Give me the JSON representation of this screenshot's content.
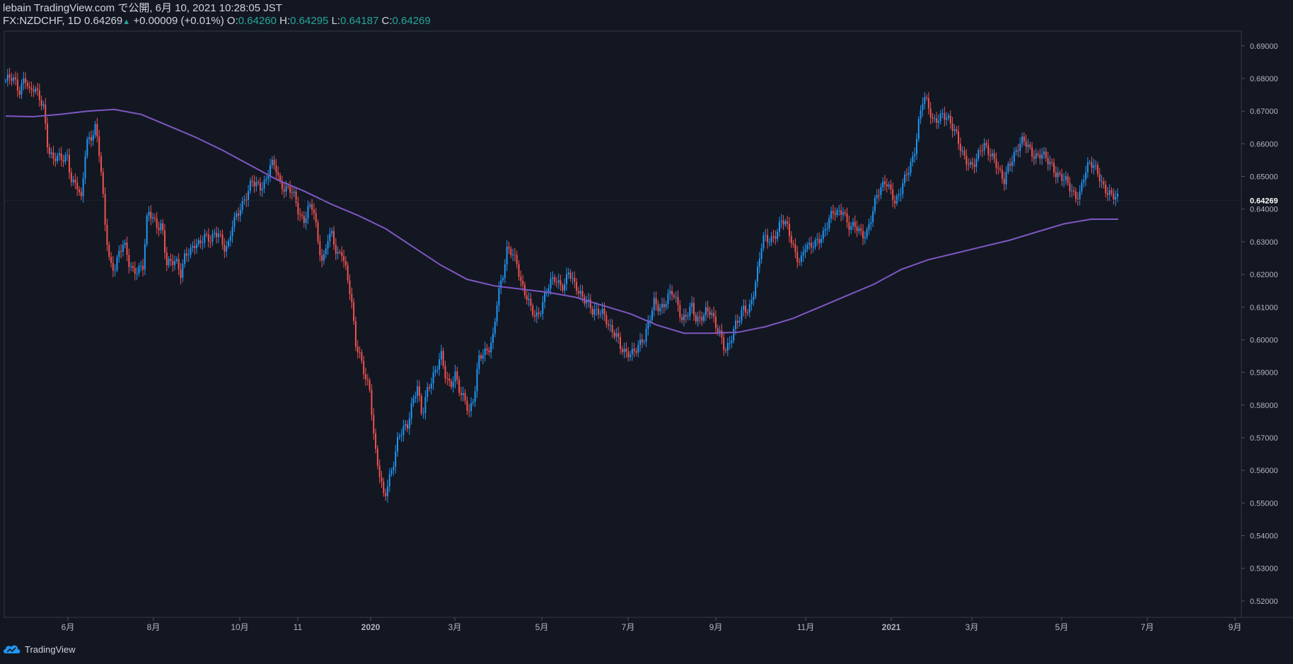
{
  "header": {
    "publish_line": "lebain TradingView.com で公開, 6月 10, 2021 10:28:05 JST",
    "symbol_line": "FX:NZDCHF, 1D",
    "last": "0.64269",
    "change_arrow": "▲",
    "change": "+0.00009 (+0.01%)",
    "o_label": "O:",
    "o": "0.64260",
    "h_label": "H:",
    "h": "0.64295",
    "l_label": "L:",
    "l": "0.64187",
    "c_label": "C:",
    "c": "0.64269"
  },
  "footer": {
    "brand": "TradingView"
  },
  "colors": {
    "background": "#131722",
    "up": "#2196f3",
    "down": "#ef5350",
    "ma": "#7e57c2",
    "axis_text": "#b2b5be",
    "border": "#363a45",
    "positive_text": "#26a69a"
  },
  "chart_data": {
    "type": "candlestick",
    "symbol": "FX:NZDCHF",
    "interval": "1D",
    "y_range": [
      0.515,
      0.6945
    ],
    "y_ticks": [
      "0.69000",
      "0.68000",
      "0.67000",
      "0.66000",
      "0.65000",
      "0.64000",
      "0.63000",
      "0.62000",
      "0.61000",
      "0.60000",
      "0.59000",
      "0.58000",
      "0.57000",
      "0.56000",
      "0.55000",
      "0.54000",
      "0.53000",
      "0.52000"
    ],
    "x_ticks": [
      "6月",
      "8月",
      "10月",
      "11",
      "2020",
      "3月",
      "5月",
      "7月",
      "9月",
      "11月",
      "2021",
      "3月",
      "5月",
      "7月",
      "9月"
    ],
    "last_price_label": "0.64269",
    "price_path": [
      [
        0.6785,
        0.68
      ],
      [
        0.6795,
        0.6765
      ],
      [
        0.681,
        0.675
      ],
      [
        0.6765,
        0.675
      ],
      [
        0.672,
        0.658
      ],
      [
        0.6545,
        0.6555
      ],
      [
        0.6558,
        0.657
      ],
      [
        0.648,
        0.647
      ],
      [
        0.642,
        0.661
      ],
      [
        0.6625,
        0.6655
      ],
      [
        0.654,
        0.635
      ],
      [
        0.6235,
        0.6225
      ],
      [
        0.627,
        0.629
      ],
      [
        0.623,
        0.621
      ],
      [
        0.6225,
        0.6225
      ],
      [
        0.6385,
        0.637
      ],
      [
        0.635,
        0.636
      ],
      [
        0.6235,
        0.623
      ],
      [
        0.6235,
        0.6205
      ],
      [
        0.6275,
        0.627
      ],
      [
        0.6285,
        0.6285
      ],
      [
        0.6325,
        0.6315
      ],
      [
        0.632,
        0.632
      ],
      [
        0.6275,
        0.629
      ],
      [
        0.637,
        0.6385
      ],
      [
        0.6405,
        0.6435
      ],
      [
        0.6495,
        0.6485
      ],
      [
        0.6465,
        0.6475
      ],
      [
        0.6535,
        0.654
      ],
      [
        0.6485,
        0.646
      ],
      [
        0.6455,
        0.6435
      ],
      [
        0.639,
        0.637
      ],
      [
        0.6405,
        0.64
      ],
      [
        0.6295,
        0.6235
      ],
      [
        0.632,
        0.6325
      ],
      [
        0.6245,
        0.6265
      ],
      [
        0.6215,
        0.614
      ],
      [
        0.5985,
        0.5935
      ],
      [
        0.588,
        0.585
      ],
      [
        0.568,
        0.559
      ],
      [
        0.5505,
        0.5565
      ],
      [
        0.563,
        0.5715
      ],
      [
        0.5725,
        0.573
      ],
      [
        0.5805,
        0.5865
      ],
      [
        0.5775,
        0.584
      ],
      [
        0.5865,
        0.5905
      ],
      [
        0.5965,
        0.5895
      ],
      [
        0.5855,
        0.5885
      ],
      [
        0.5835,
        0.5825
      ],
      [
        0.5785,
        0.5825
      ],
      [
        0.5935,
        0.5955
      ],
      [
        0.5975,
        0.6015
      ],
      [
        0.6135,
        0.618
      ],
      [
        0.6275,
        0.6275
      ],
      [
        0.6245,
        0.6165
      ],
      [
        0.6125,
        0.6095
      ],
      [
        0.6075,
        0.6095
      ],
      [
        0.6135,
        0.6165
      ],
      [
        0.6185,
        0.6175
      ],
      [
        0.617,
        0.621
      ],
      [
        0.6165,
        0.6145
      ],
      [
        0.6135,
        0.6125
      ],
      [
        0.6085,
        0.6075
      ],
      [
        0.6085,
        0.6065
      ],
      [
        0.6035,
        0.6015
      ],
      [
        0.5965,
        0.5955
      ],
      [
        0.5965,
        0.5975
      ],
      [
        0.5985,
        0.5995
      ],
      [
        0.6055,
        0.6125
      ],
      [
        0.6105,
        0.6095
      ],
      [
        0.6125,
        0.6145
      ],
      [
        0.6115,
        0.6065
      ],
      [
        0.6075,
        0.6095
      ],
      [
        0.6055,
        0.6075
      ],
      [
        0.6095,
        0.6085
      ],
      [
        0.6035,
        0.6015
      ],
      [
        0.5975,
        0.5995
      ],
      [
        0.6035,
        0.6055
      ],
      [
        0.6095,
        0.6095
      ],
      [
        0.6145,
        0.6215
      ],
      [
        0.6305,
        0.6305
      ],
      [
        0.6315,
        0.6335
      ],
      [
        0.6365,
        0.6345
      ],
      [
        0.6305,
        0.6265
      ],
      [
        0.6245,
        0.6285
      ],
      [
        0.6275,
        0.6295
      ],
      [
        0.6315,
        0.6335
      ],
      [
        0.6365,
        0.6385
      ],
      [
        0.6385,
        0.6405
      ],
      [
        0.6355,
        0.6345
      ],
      [
        0.6335,
        0.6315
      ],
      [
        0.6335,
        0.6385
      ],
      [
        0.6435,
        0.6455
      ],
      [
        0.6485,
        0.6465
      ],
      [
        0.6425,
        0.6445
      ],
      [
        0.6485,
        0.6525
      ],
      [
        0.6575,
        0.6675
      ],
      [
        0.6745,
        0.6705
      ],
      [
        0.6665,
        0.6685
      ],
      [
        0.6695,
        0.6675
      ],
      [
        0.6645,
        0.6625
      ],
      [
        0.6585,
        0.6555
      ],
      [
        0.6525,
        0.6535
      ],
      [
        0.6585,
        0.6605
      ],
      [
        0.6575,
        0.6545
      ],
      [
        0.6505,
        0.6485
      ],
      [
        0.6545,
        0.6565
      ],
      [
        0.6585,
        0.6605
      ],
      [
        0.6595,
        0.6575
      ],
      [
        0.6565,
        0.6565
      ],
      [
        0.6545,
        0.6535
      ],
      [
        0.6515,
        0.6505
      ],
      [
        0.6485,
        0.6455
      ],
      [
        0.6435,
        0.6455
      ],
      [
        0.6515,
        0.6535
      ],
      [
        0.6525,
        0.6505
      ],
      [
        0.6475,
        0.6455
      ],
      [
        0.6435,
        0.6427
      ]
    ],
    "moving_average": [
      [
        0.6685,
        0.6683
      ],
      [
        0.669,
        0.67
      ],
      [
        0.6705,
        0.669
      ],
      [
        0.6655,
        0.662
      ],
      [
        0.658,
        0.6535
      ],
      [
        0.649,
        0.6455
      ],
      [
        0.6415,
        0.638
      ],
      [
        0.634,
        0.6285
      ],
      [
        0.623,
        0.6185
      ],
      [
        0.6165,
        0.6155
      ],
      [
        0.6145,
        0.613
      ],
      [
        0.6105,
        0.608
      ],
      [
        0.6045,
        0.602
      ],
      [
        0.602,
        0.6023
      ],
      [
        0.604,
        0.6065
      ],
      [
        0.61,
        0.6135
      ],
      [
        0.617,
        0.6215
      ],
      [
        0.6245,
        0.6265
      ],
      [
        0.6285,
        0.6305
      ],
      [
        0.633,
        0.6355
      ],
      [
        0.6369,
        0.6369
      ]
    ]
  }
}
